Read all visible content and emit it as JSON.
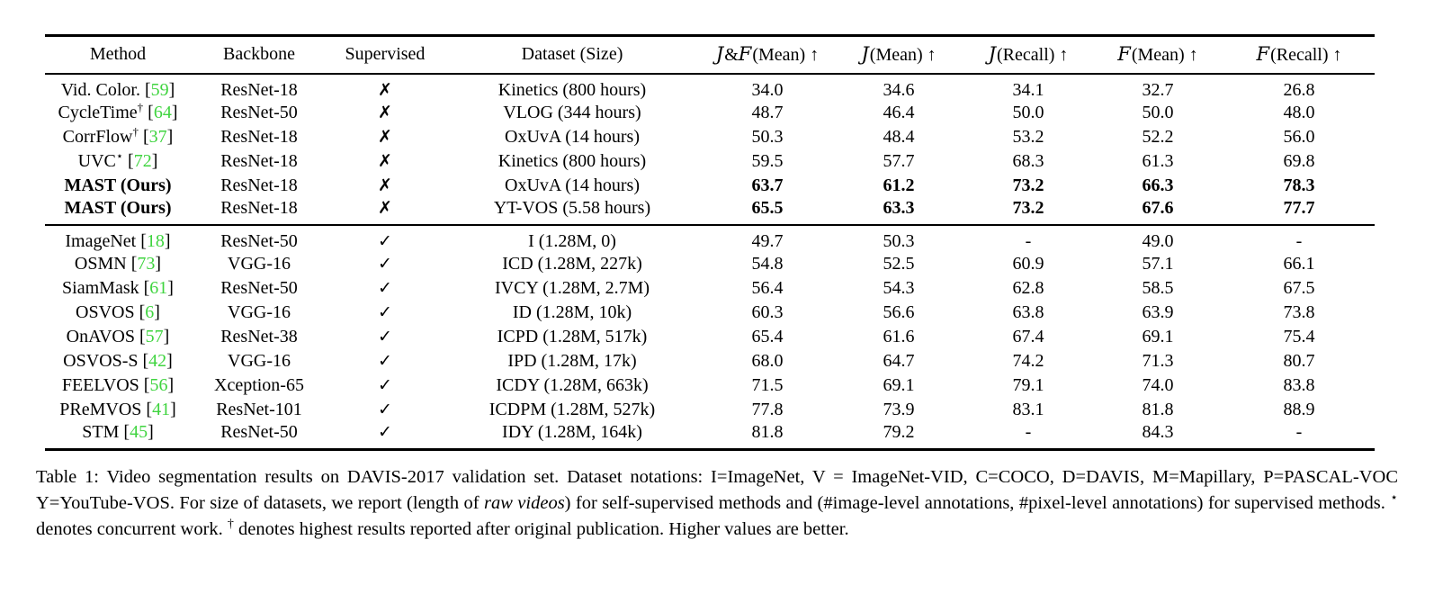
{
  "colors": {
    "citation_green": "#3fd43f",
    "text": "#000000",
    "background": "#ffffff"
  },
  "icons": {
    "check": "✓",
    "cross": "✗",
    "up_arrow": "↑"
  },
  "table": {
    "columns": [
      {
        "parts": [
          {
            "kind": "plain",
            "text": "Method"
          }
        ]
      },
      {
        "parts": [
          {
            "kind": "plain",
            "text": "Backbone"
          }
        ]
      },
      {
        "parts": [
          {
            "kind": "plain",
            "text": "Supervised"
          }
        ]
      },
      {
        "parts": [
          {
            "kind": "plain",
            "text": "Dataset (Size)"
          }
        ]
      },
      {
        "parts": [
          {
            "kind": "script",
            "text": "J"
          },
          {
            "kind": "plain",
            "text": "&"
          },
          {
            "kind": "script",
            "text": "F"
          },
          {
            "kind": "plain",
            "text": "(Mean) ↑"
          }
        ]
      },
      {
        "parts": [
          {
            "kind": "script",
            "text": "J"
          },
          {
            "kind": "plain",
            "text": "(Mean) ↑"
          }
        ]
      },
      {
        "parts": [
          {
            "kind": "script",
            "text": "J"
          },
          {
            "kind": "plain",
            "text": "(Recall) ↑"
          }
        ]
      },
      {
        "parts": [
          {
            "kind": "script",
            "text": "F"
          },
          {
            "kind": "plain",
            "text": "(Mean) ↑"
          }
        ]
      },
      {
        "parts": [
          {
            "kind": "script",
            "text": "F"
          },
          {
            "kind": "plain",
            "text": "(Recall) ↑"
          }
        ]
      }
    ],
    "sections": [
      {
        "name": "self-supervised",
        "rows": [
          {
            "method": "Vid. Color.",
            "sup": "",
            "cite": "59",
            "backbone": "ResNet-18",
            "supervised": false,
            "dataset": "Kinetics (800 hours)",
            "values": [
              "34.0",
              "34.6",
              "34.1",
              "32.7",
              "26.8"
            ],
            "bold": false
          },
          {
            "method": "CycleTime",
            "sup": "†",
            "cite": "64",
            "backbone": "ResNet-50",
            "supervised": false,
            "dataset": "VLOG (344 hours)",
            "values": [
              "48.7",
              "46.4",
              "50.0",
              "50.0",
              "48.0"
            ],
            "bold": false
          },
          {
            "method": "CorrFlow",
            "sup": "†",
            "cite": "37",
            "backbone": "ResNet-18",
            "supervised": false,
            "dataset": "OxUvA (14 hours)",
            "values": [
              "50.3",
              "48.4",
              "53.2",
              "52.2",
              "56.0"
            ],
            "bold": false
          },
          {
            "method": "UVC",
            "sup": "⋆",
            "cite": "72",
            "backbone": "ResNet-18",
            "supervised": false,
            "dataset": "Kinetics (800 hours)",
            "values": [
              "59.5",
              "57.7",
              "68.3",
              "61.3",
              "69.8"
            ],
            "bold": false
          },
          {
            "method": "MAST (Ours)",
            "sup": "",
            "cite": "",
            "backbone": "ResNet-18",
            "supervised": false,
            "dataset": "OxUvA (14 hours)",
            "values": [
              "63.7",
              "61.2",
              "73.2",
              "66.3",
              "78.3"
            ],
            "bold": true
          },
          {
            "method": "MAST (Ours)",
            "sup": "",
            "cite": "",
            "backbone": "ResNet-18",
            "supervised": false,
            "dataset": "YT-VOS (5.58 hours)",
            "values": [
              "65.5",
              "63.3",
              "73.2",
              "67.6",
              "77.7"
            ],
            "bold": true
          }
        ]
      },
      {
        "name": "supervised",
        "rows": [
          {
            "method": "ImageNet",
            "sup": "",
            "cite": "18",
            "backbone": "ResNet-50",
            "supervised": true,
            "dataset": "I (1.28M, 0)",
            "values": [
              "49.7",
              "50.3",
              "-",
              "49.0",
              "-"
            ],
            "bold": false
          },
          {
            "method": "OSMN",
            "sup": "",
            "cite": "73",
            "backbone": "VGG-16",
            "supervised": true,
            "dataset": "ICD (1.28M, 227k)",
            "values": [
              "54.8",
              "52.5",
              "60.9",
              "57.1",
              "66.1"
            ],
            "bold": false
          },
          {
            "method": "SiamMask",
            "sup": "",
            "cite": "61",
            "backbone": "ResNet-50",
            "supervised": true,
            "dataset": "IVCY (1.28M, 2.7M)",
            "values": [
              "56.4",
              "54.3",
              "62.8",
              "58.5",
              "67.5"
            ],
            "bold": false
          },
          {
            "method": "OSVOS",
            "sup": "",
            "cite": "6",
            "backbone": "VGG-16",
            "supervised": true,
            "dataset": "ID (1.28M, 10k)",
            "values": [
              "60.3",
              "56.6",
              "63.8",
              "63.9",
              "73.8"
            ],
            "bold": false
          },
          {
            "method": "OnAVOS",
            "sup": "",
            "cite": "57",
            "backbone": "ResNet-38",
            "supervised": true,
            "dataset": "ICPD (1.28M, 517k)",
            "values": [
              "65.4",
              "61.6",
              "67.4",
              "69.1",
              "75.4"
            ],
            "bold": false
          },
          {
            "method": "OSVOS-S",
            "sup": "",
            "cite": "42",
            "backbone": "VGG-16",
            "supervised": true,
            "dataset": "IPD (1.28M, 17k)",
            "values": [
              "68.0",
              "64.7",
              "74.2",
              "71.3",
              "80.7"
            ],
            "bold": false
          },
          {
            "method": "FEELVOS",
            "sup": "",
            "cite": "56",
            "backbone": "Xception-65",
            "supervised": true,
            "dataset": "ICDY (1.28M, 663k)",
            "values": [
              "71.5",
              "69.1",
              "79.1",
              "74.0",
              "83.8"
            ],
            "bold": false
          },
          {
            "method": "PReMVOS",
            "sup": "",
            "cite": "41",
            "backbone": "ResNet-101",
            "supervised": true,
            "dataset": "ICDPM (1.28M, 527k)",
            "values": [
              "77.8",
              "73.9",
              "83.1",
              "81.8",
              "88.9"
            ],
            "bold": false
          },
          {
            "method": "STM",
            "sup": "",
            "cite": "45",
            "backbone": "ResNet-50",
            "supervised": true,
            "dataset": "IDY (1.28M, 164k)",
            "values": [
              "81.8",
              "79.2",
              "-",
              "84.3",
              "-"
            ],
            "bold": false
          }
        ]
      }
    ]
  },
  "caption": {
    "segments": [
      {
        "style": "plain",
        "text": "Table 1:  Video segmentation results on DAVIS-2017 validation set.  Dataset notations: I=ImageNet, V = ImageNet-VID, C=COCO, D=DAVIS, M=Mapillary, P=PASCAL-VOC Y=YouTube-VOS. For size of datasets, we report (length of "
      },
      {
        "style": "italic",
        "text": "raw videos"
      },
      {
        "style": "plain",
        "text": ") for self-supervised methods and (#image-level annotations, #pixel-level annotations) for supervised methods. "
      },
      {
        "style": "sup",
        "text": "⋆"
      },
      {
        "style": "plain",
        "text": " denotes concurrent work. "
      },
      {
        "style": "sup",
        "text": "†"
      },
      {
        "style": "plain",
        "text": " denotes highest results reported after original publication. Higher values are better."
      }
    ]
  }
}
